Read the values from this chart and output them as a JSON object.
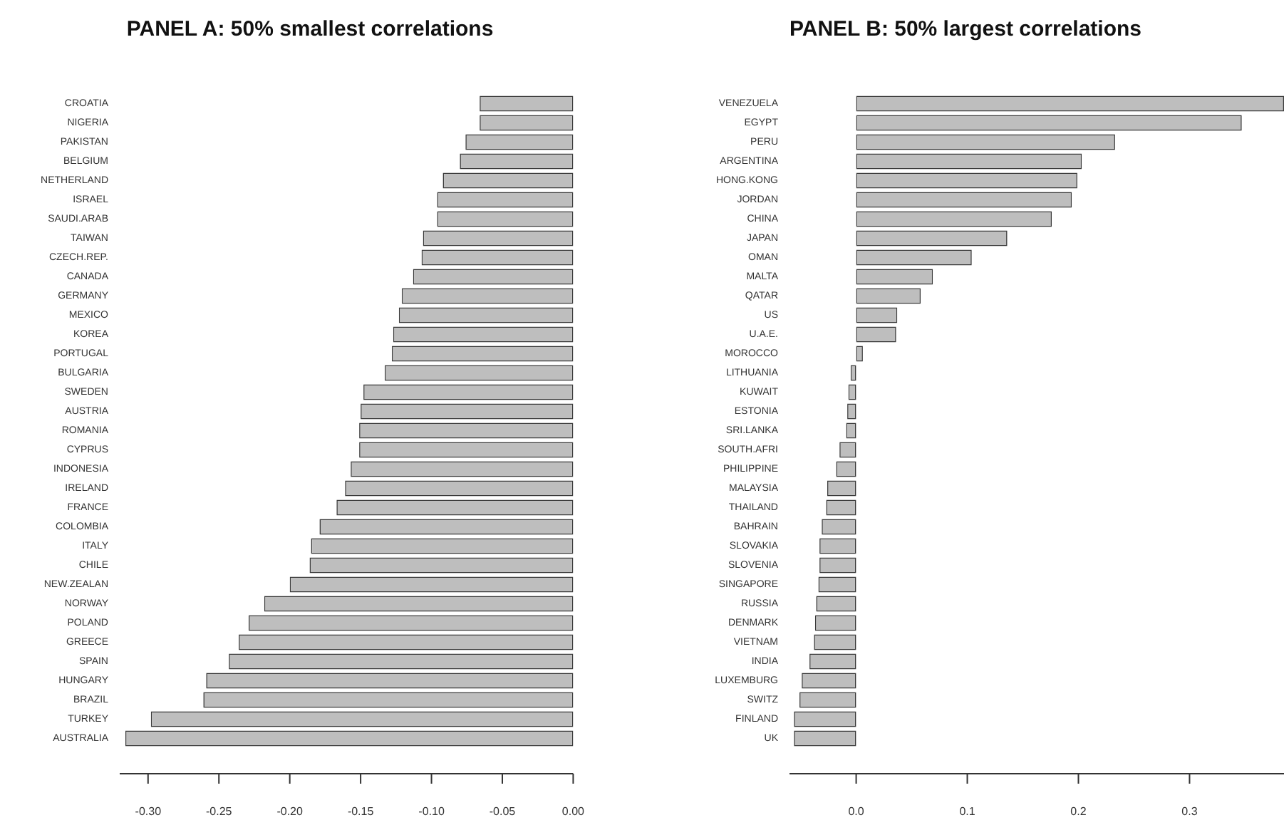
{
  "chart_data": [
    {
      "type": "bar",
      "orientation": "horizontal",
      "title": "PANEL A: 50% smallest correlations",
      "grid": false,
      "legend": false,
      "color": "#bebebe",
      "categories": [
        "CROATIA",
        "NIGERIA",
        "PAKISTAN",
        "BELGIUM",
        "NETHERLAND",
        "ISRAEL",
        "SAUDI.ARAB",
        "TAIWAN",
        "CZECH.REP.",
        "CANADA",
        "GERMANY",
        "MEXICO",
        "KOREA",
        "PORTUGAL",
        "BULGARIA",
        "SWEDEN",
        "AUSTRIA",
        "ROMANIA",
        "CYPRUS",
        "INDONESIA",
        "IRELAND",
        "FRANCE",
        "COLOMBIA",
        "ITALY",
        "CHILE",
        "NEW.ZEALAN",
        "NORWAY",
        "POLAND",
        "GREECE",
        "SPAIN",
        "HUNGARY",
        "BRAZIL",
        "TURKEY",
        "AUSTRALIA"
      ],
      "values": [
        -0.066,
        -0.066,
        -0.076,
        -0.08,
        -0.092,
        -0.096,
        -0.096,
        -0.106,
        -0.107,
        -0.113,
        -0.121,
        -0.123,
        -0.127,
        -0.128,
        -0.133,
        -0.148,
        -0.15,
        -0.151,
        -0.151,
        -0.157,
        -0.161,
        -0.167,
        -0.179,
        -0.185,
        -0.186,
        -0.2,
        -0.218,
        -0.229,
        -0.236,
        -0.243,
        -0.259,
        -0.261,
        -0.298,
        -0.316
      ],
      "xlim": [
        -0.32,
        0
      ],
      "xticks": [
        {
          "value": -0.3,
          "label": "-0.30"
        },
        {
          "value": -0.25,
          "label": "-0.25"
        },
        {
          "value": -0.2,
          "label": "-0.20"
        },
        {
          "value": -0.15,
          "label": "-0.15"
        },
        {
          "value": -0.1,
          "label": "-0.10"
        },
        {
          "value": -0.05,
          "label": "-0.05"
        },
        {
          "value": 0,
          "label": "0.00"
        }
      ]
    },
    {
      "type": "bar",
      "orientation": "horizontal",
      "title": "PANEL B: 50% largest correlations",
      "grid": false,
      "legend": false,
      "color": "#bebebe",
      "categories": [
        "VENEZUELA",
        "EGYPT",
        "PERU",
        "ARGENTINA",
        "HONG.KONG",
        "JORDAN",
        "CHINA",
        "JAPAN",
        "OMAN",
        "MALTA",
        "QATAR",
        "US",
        "U.A.E.",
        "MOROCCO",
        "LITHUANIA",
        "KUWAIT",
        "ESTONIA",
        "SRI.LANKA",
        "SOUTH.AFRI",
        "PHILIPPINE",
        "MALAYSIA",
        "THAILAND",
        "BAHRAIN",
        "SLOVAKIA",
        "SLOVENIA",
        "SINGAPORE",
        "RUSSIA",
        "DENMARK",
        "VIETNAM",
        "INDIA",
        "LUXEMBURG",
        "SWITZ",
        "FINLAND",
        "UK"
      ],
      "values": [
        0.385,
        0.347,
        0.233,
        0.203,
        0.199,
        0.194,
        0.176,
        0.136,
        0.104,
        0.069,
        0.058,
        0.037,
        0.036,
        0.006,
        -0.005,
        -0.007,
        -0.008,
        -0.009,
        -0.015,
        -0.018,
        -0.026,
        -0.027,
        -0.031,
        -0.033,
        -0.033,
        -0.034,
        -0.036,
        -0.037,
        -0.038,
        -0.042,
        -0.049,
        -0.051,
        -0.056,
        -0.056
      ],
      "xlim": [
        -0.06,
        0.385
      ],
      "xticks": [
        {
          "value": 0,
          "label": "0.0"
        },
        {
          "value": 0.1,
          "label": "0.1"
        },
        {
          "value": 0.2,
          "label": "0.2"
        },
        {
          "value": 0.3,
          "label": "0.3"
        }
      ]
    }
  ]
}
